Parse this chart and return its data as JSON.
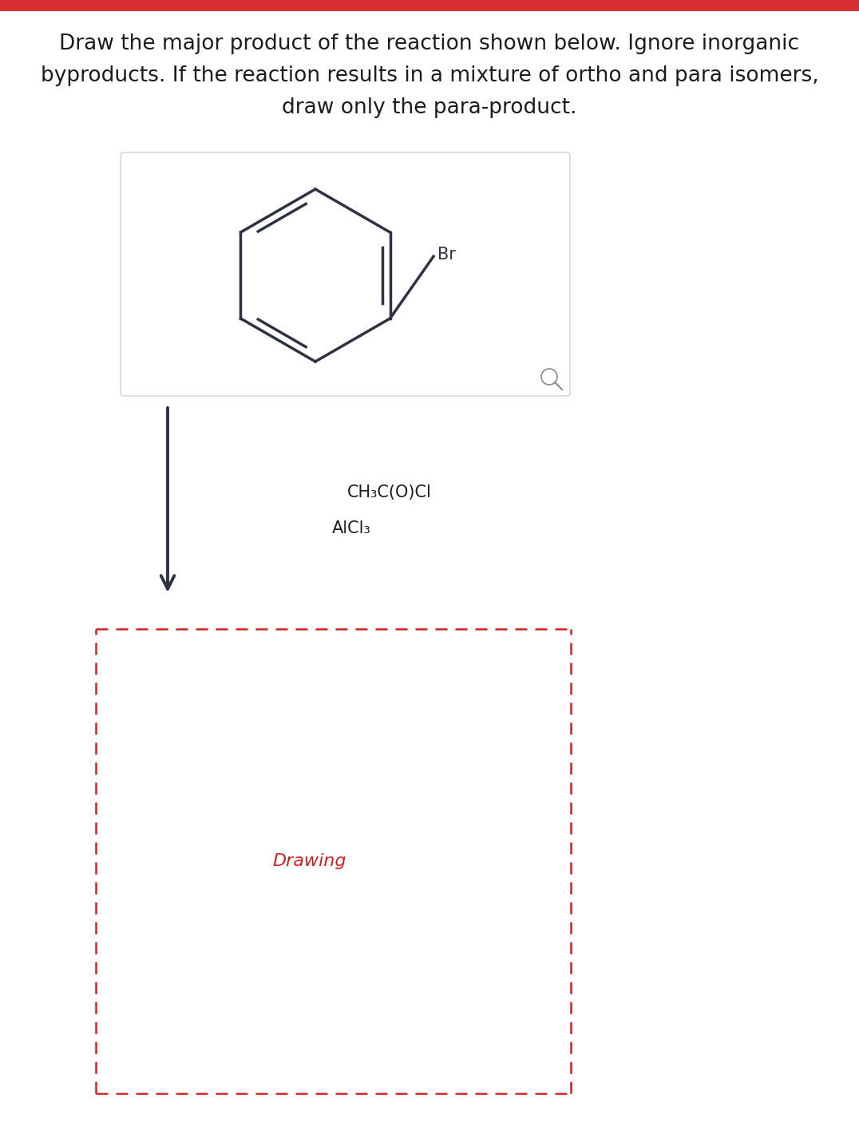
{
  "title_line1": "Draw the major product of the reaction shown below. Ignore inorganic",
  "title_line2": "byproducts. If the reaction results in a mixture of ortho and para isomers,",
  "title_line3": "draw only the para-product.",
  "title_fontsize": 19,
  "title_color": "#1c1c1c",
  "top_bar_color": "#d63030",
  "reagent_line1": "CH₃C(O)Cl",
  "reagent_line2": "AlCl₃",
  "reagent_fontsize": 15,
  "drawing_text": "Drawing",
  "drawing_text_color": "#cc2222",
  "drawing_fontsize": 16,
  "benzene_color": "#2d3142",
  "benzene_linewidth": 2.5,
  "box_border_color": "#d8d8d8",
  "dashed_border_color": "#cc2222",
  "br_label": "Br",
  "br_fontsize": 15,
  "arrow_color": "#2d3142",
  "magnifier_color": "#888888"
}
